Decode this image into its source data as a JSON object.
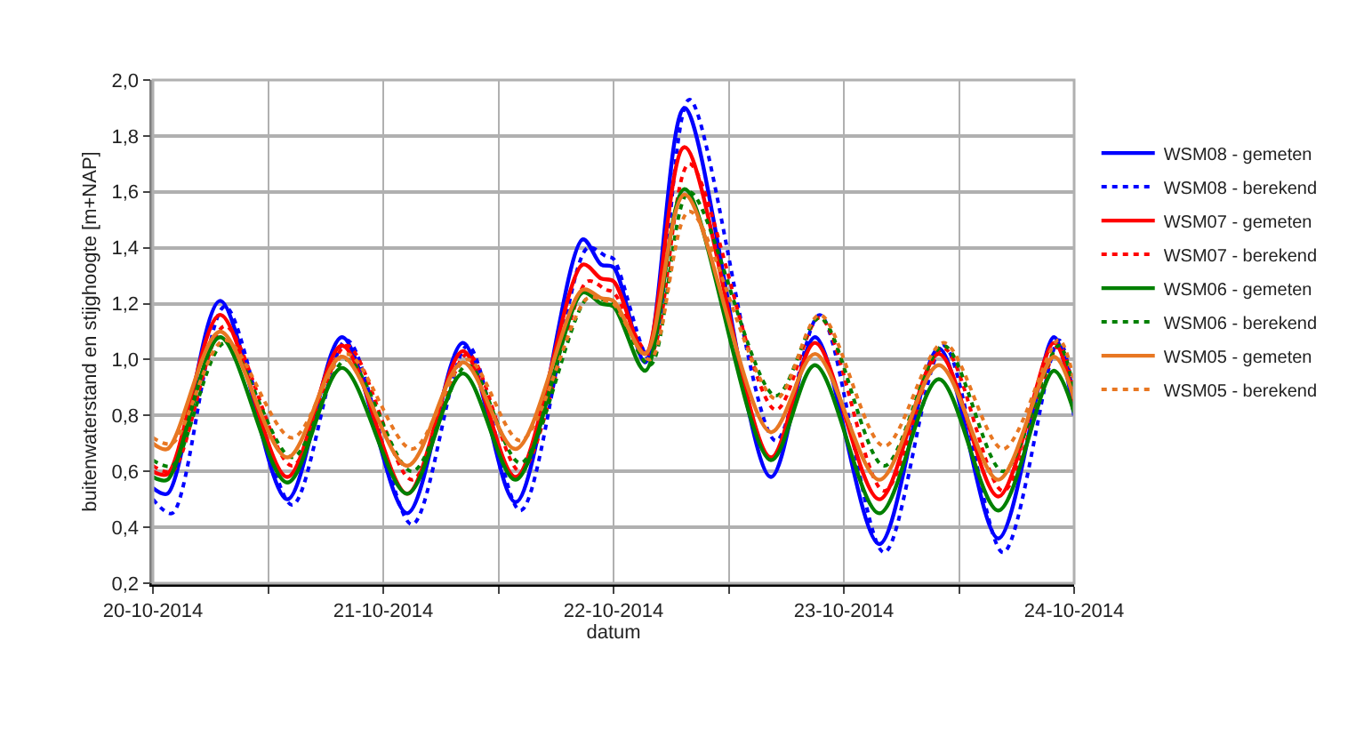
{
  "chart_data": {
    "type": "line",
    "xlabel": "datum",
    "ylabel": "buitenwaterstand en stijghoogte [m+NAP]",
    "xlim": [
      "2014-10-20T00:00",
      "2014-10-24T00:00"
    ],
    "xticks": [
      {
        "value": "2014-10-20T00:00",
        "label": "20-10-2014"
      },
      {
        "value": "2014-10-20T12:00",
        "label": null
      },
      {
        "value": "2014-10-21T00:00",
        "label": "21-10-2014"
      },
      {
        "value": "2014-10-21T12:00",
        "label": null
      },
      {
        "value": "2014-10-22T00:00",
        "label": "22-10-2014"
      },
      {
        "value": "2014-10-22T12:00",
        "label": null
      },
      {
        "value": "2014-10-23T00:00",
        "label": "23-10-2014"
      },
      {
        "value": "2014-10-23T12:00",
        "label": null
      },
      {
        "value": "2014-10-24T00:00",
        "label": "24-10-2014"
      }
    ],
    "ylim": [
      0.2,
      2.0
    ],
    "yticks": [
      {
        "value": 0.2,
        "label": "0,2"
      },
      {
        "value": 0.4,
        "label": "0,4"
      },
      {
        "value": 0.6,
        "label": "0,6"
      },
      {
        "value": 0.8,
        "label": "0,8"
      },
      {
        "value": 1.0,
        "label": "1,0"
      },
      {
        "value": 1.2,
        "label": "1,2"
      },
      {
        "value": 1.4,
        "label": "1,4"
      },
      {
        "value": 1.6,
        "label": "1,6"
      },
      {
        "value": 1.8,
        "label": "1,8"
      },
      {
        "value": 2.0,
        "label": "2,0"
      }
    ],
    "grid": true,
    "legend": "right",
    "marker": "none",
    "series": [
      {
        "name": "WSM08 - gemeten",
        "color": "#0000ff",
        "line_style": "solid",
        "x": [
          "2014-10-20T00:00",
          "2014-10-20T01:30",
          "2014-10-20T07:00",
          "2014-10-20T14:00",
          "2014-10-20T19:42",
          "2014-10-21T02:30",
          "2014-10-21T08:18",
          "2014-10-21T13:48",
          "2014-10-21T20:48",
          "2014-10-21T22:42",
          "2014-10-22T00:00",
          "2014-10-22T03:18",
          "2014-10-22T07:24",
          "2014-10-22T16:24",
          "2014-10-22T21:00",
          "2014-10-23T03:42",
          "2014-10-23T09:54",
          "2014-10-23T16:06",
          "2014-10-23T21:54",
          "2014-10-24T00:00"
        ],
        "values": [
          0.54,
          0.52,
          1.21,
          0.5,
          1.08,
          0.45,
          1.06,
          0.49,
          1.43,
          1.34,
          1.33,
          0.99,
          1.9,
          0.58,
          1.08,
          0.34,
          1.04,
          0.36,
          1.08,
          0.8
        ]
      },
      {
        "name": "WSM08 - berekend",
        "color": "#0000ff",
        "line_style": "dotted",
        "x": [
          "2014-10-20T00:00",
          "2014-10-20T02:00",
          "2014-10-20T07:30",
          "2014-10-20T14:30",
          "2014-10-20T20:12",
          "2014-10-21T03:00",
          "2014-10-21T08:48",
          "2014-10-21T14:18",
          "2014-10-21T21:18",
          "2014-10-21T23:12",
          "2014-10-22T00:00",
          "2014-10-22T03:48",
          "2014-10-22T07:54",
          "2014-10-22T16:54",
          "2014-10-22T21:30",
          "2014-10-23T04:12",
          "2014-10-23T10:24",
          "2014-10-23T16:36",
          "2014-10-23T22:24",
          "2014-10-24T00:00"
        ],
        "values": [
          0.5,
          0.45,
          1.19,
          0.48,
          1.07,
          0.41,
          1.05,
          0.46,
          1.4,
          1.37,
          1.36,
          1.0,
          1.93,
          0.71,
          1.16,
          0.31,
          1.05,
          0.31,
          1.07,
          0.85
        ]
      },
      {
        "name": "WSM07 - gemeten",
        "color": "#ff0000",
        "line_style": "solid",
        "x": [
          "2014-10-20T00:00",
          "2014-10-20T01:30",
          "2014-10-20T07:00",
          "2014-10-20T14:00",
          "2014-10-20T19:42",
          "2014-10-21T02:30",
          "2014-10-21T08:18",
          "2014-10-21T13:48",
          "2014-10-21T20:48",
          "2014-10-21T22:42",
          "2014-10-22T00:00",
          "2014-10-22T03:18",
          "2014-10-22T07:24",
          "2014-10-22T16:24",
          "2014-10-22T21:00",
          "2014-10-23T03:42",
          "2014-10-23T09:54",
          "2014-10-23T16:06",
          "2014-10-23T21:54",
          "2014-10-24T00:00"
        ],
        "values": [
          0.6,
          0.59,
          1.16,
          0.58,
          1.05,
          0.52,
          1.03,
          0.58,
          1.34,
          1.29,
          1.28,
          1.02,
          1.76,
          0.65,
          1.06,
          0.5,
          1.02,
          0.51,
          1.06,
          0.85
        ]
      },
      {
        "name": "WSM07 - berekend",
        "color": "#ff0000",
        "line_style": "dotted",
        "x": [
          "2014-10-20T00:00",
          "2014-10-20T02:00",
          "2014-10-20T07:30",
          "2014-10-20T14:30",
          "2014-10-20T20:12",
          "2014-10-21T03:00",
          "2014-10-21T08:48",
          "2014-10-21T14:18",
          "2014-10-21T21:18",
          "2014-10-21T23:12",
          "2014-10-22T00:00",
          "2014-10-22T03:48",
          "2014-10-22T07:54",
          "2014-10-22T16:54",
          "2014-10-22T21:30",
          "2014-10-23T04:12",
          "2014-10-23T10:24",
          "2014-10-23T16:36",
          "2014-10-23T22:24",
          "2014-10-24T00:00"
        ],
        "values": [
          0.62,
          0.6,
          1.12,
          0.62,
          1.05,
          0.57,
          1.02,
          0.6,
          1.28,
          1.25,
          1.24,
          1.02,
          1.7,
          0.82,
          1.15,
          0.53,
          1.04,
          0.53,
          1.05,
          0.88
        ]
      },
      {
        "name": "WSM06 - gemeten",
        "color": "#008000",
        "line_style": "solid",
        "x": [
          "2014-10-20T00:00",
          "2014-10-20T01:30",
          "2014-10-20T07:00",
          "2014-10-20T14:00",
          "2014-10-20T19:42",
          "2014-10-21T02:30",
          "2014-10-21T08:18",
          "2014-10-21T13:48",
          "2014-10-21T20:48",
          "2014-10-21T22:42",
          "2014-10-22T00:00",
          "2014-10-22T03:18",
          "2014-10-22T07:24",
          "2014-10-22T16:24",
          "2014-10-22T21:00",
          "2014-10-23T03:42",
          "2014-10-23T09:54",
          "2014-10-23T16:06",
          "2014-10-23T21:54",
          "2014-10-24T00:00"
        ],
        "values": [
          0.58,
          0.57,
          1.08,
          0.56,
          0.97,
          0.52,
          0.95,
          0.57,
          1.24,
          1.2,
          1.19,
          0.96,
          1.61,
          0.64,
          0.98,
          0.45,
          0.93,
          0.46,
          0.96,
          0.81
        ]
      },
      {
        "name": "WSM06 - berekend",
        "color": "#008000",
        "line_style": "dotted",
        "x": [
          "2014-10-20T00:00",
          "2014-10-20T02:00",
          "2014-10-20T07:30",
          "2014-10-20T14:30",
          "2014-10-20T20:12",
          "2014-10-21T03:00",
          "2014-10-21T08:48",
          "2014-10-21T14:18",
          "2014-10-21T21:18",
          "2014-10-21T23:12",
          "2014-10-22T00:00",
          "2014-10-22T03:48",
          "2014-10-22T07:54",
          "2014-10-22T16:54",
          "2014-10-22T21:30",
          "2014-10-23T04:12",
          "2014-10-23T10:24",
          "2014-10-23T16:36",
          "2014-10-23T22:24",
          "2014-10-24T00:00"
        ],
        "values": [
          0.64,
          0.62,
          1.06,
          0.65,
          1.0,
          0.6,
          0.98,
          0.63,
          1.22,
          1.21,
          1.2,
          0.98,
          1.6,
          0.87,
          1.15,
          0.62,
          1.05,
          0.6,
          1.05,
          0.88
        ]
      },
      {
        "name": "WSM05 - gemeten",
        "color": "#e87722",
        "line_style": "solid",
        "x": [
          "2014-10-20T00:00",
          "2014-10-20T01:30",
          "2014-10-20T07:00",
          "2014-10-20T14:00",
          "2014-10-20T19:42",
          "2014-10-21T02:30",
          "2014-10-21T08:18",
          "2014-10-21T13:48",
          "2014-10-21T20:48",
          "2014-10-21T22:42",
          "2014-10-22T00:00",
          "2014-10-22T03:18",
          "2014-10-22T07:24",
          "2014-10-22T16:24",
          "2014-10-22T21:00",
          "2014-10-23T03:42",
          "2014-10-23T09:54",
          "2014-10-23T16:06",
          "2014-10-23T21:54",
          "2014-10-24T00:00"
        ],
        "values": [
          0.7,
          0.68,
          1.1,
          0.65,
          1.01,
          0.62,
          0.99,
          0.68,
          1.25,
          1.22,
          1.21,
          1.02,
          1.59,
          0.74,
          1.02,
          0.57,
          0.98,
          0.57,
          1.01,
          0.86
        ]
      },
      {
        "name": "WSM05 - berekend",
        "color": "#e87722",
        "line_style": "dotted",
        "x": [
          "2014-10-20T00:00",
          "2014-10-20T02:00",
          "2014-10-20T07:30",
          "2014-10-20T14:30",
          "2014-10-20T20:12",
          "2014-10-21T03:00",
          "2014-10-21T08:48",
          "2014-10-21T14:18",
          "2014-10-21T21:18",
          "2014-10-21T23:12",
          "2014-10-22T00:00",
          "2014-10-22T03:48",
          "2014-10-22T07:54",
          "2014-10-22T16:54",
          "2014-10-22T21:30",
          "2014-10-23T04:12",
          "2014-10-23T10:24",
          "2014-10-23T16:36",
          "2014-10-23T22:24",
          "2014-10-24T00:00"
        ],
        "values": [
          0.72,
          0.7,
          1.07,
          0.72,
          1.02,
          0.68,
          1.0,
          0.71,
          1.22,
          1.21,
          1.2,
          1.0,
          1.53,
          0.86,
          1.16,
          0.69,
          1.06,
          0.68,
          1.07,
          0.92
        ]
      }
    ]
  }
}
